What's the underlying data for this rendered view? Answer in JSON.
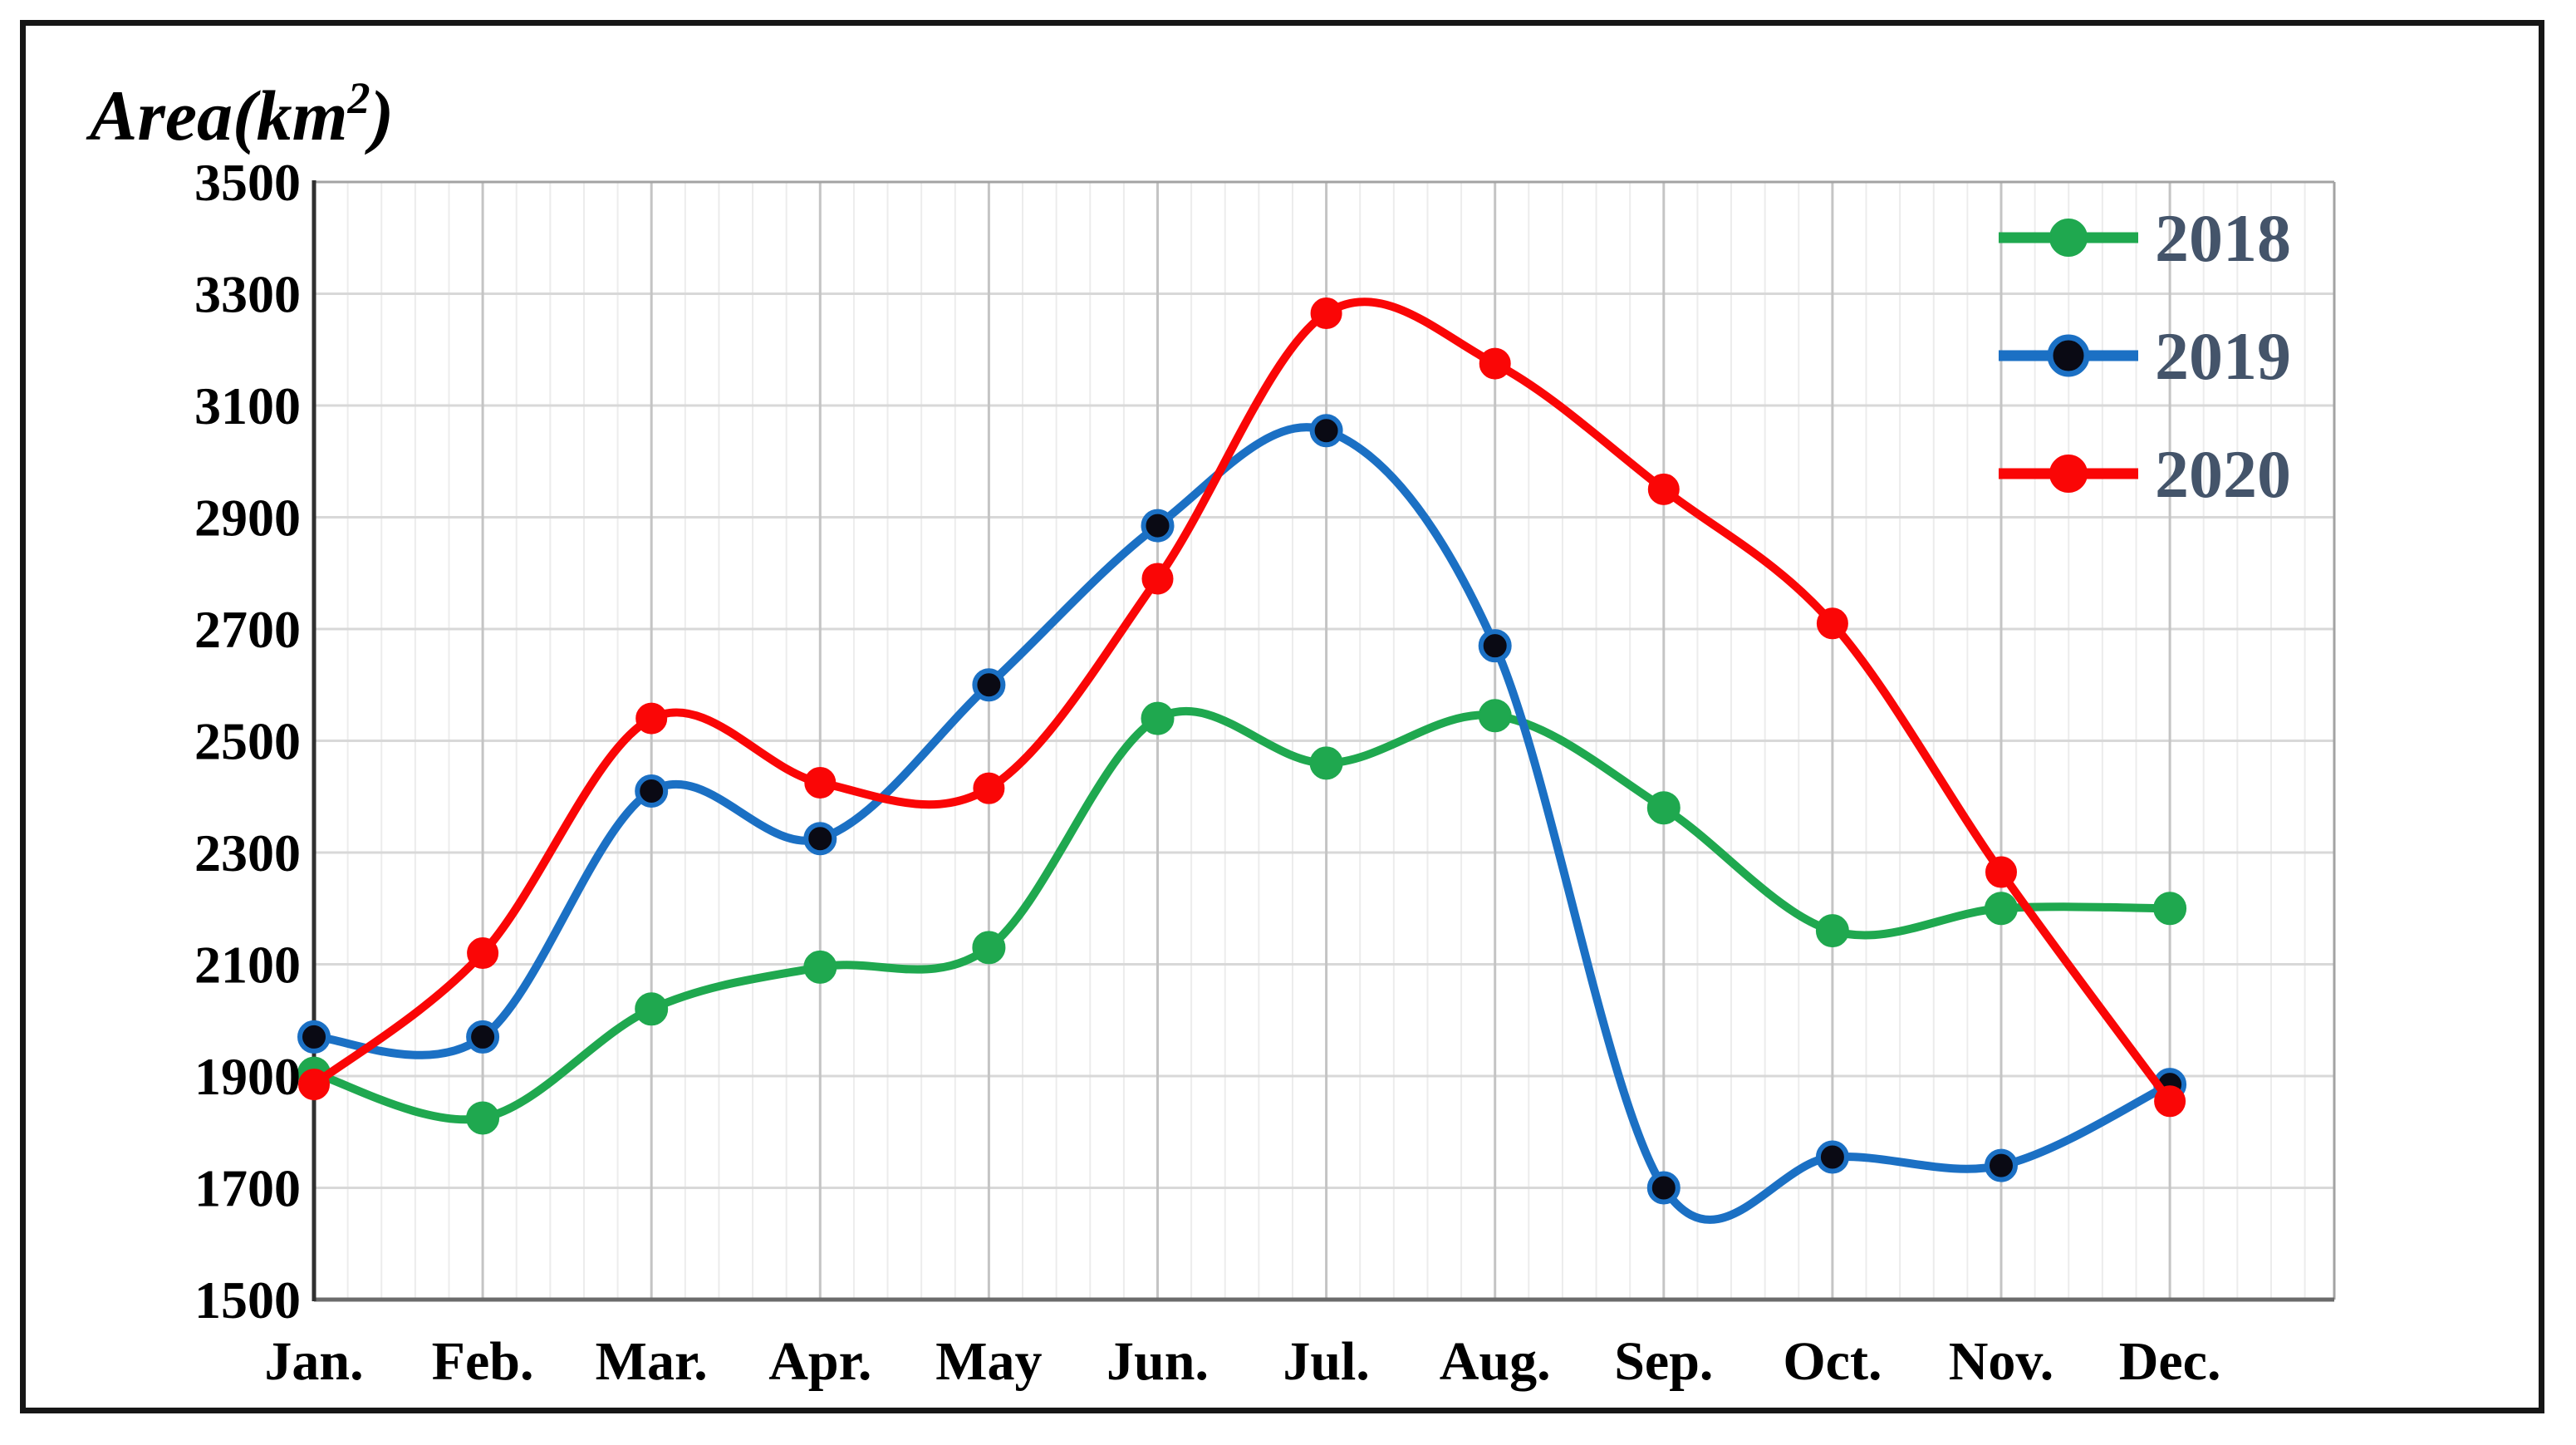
{
  "figure": {
    "background": "#FFFFFF",
    "border_color": "#161616"
  },
  "chart_data": {
    "type": "line",
    "smooth": true,
    "title": "",
    "y_axis_title": "Area(km²)",
    "y_axis_title_parts": {
      "pre": "Area(km",
      "sup": "2",
      "post": ")"
    },
    "categories": [
      "Jan.",
      "Feb.",
      "Mar.",
      "Apr.",
      "May",
      "Jun.",
      "Jul.",
      "Aug.",
      "Sep.",
      "Oct.",
      "Nov.",
      "Dec."
    ],
    "y_ticks": [
      3500,
      3300,
      3100,
      2900,
      2700,
      2500,
      2300,
      2100,
      1900,
      1700,
      1500
    ],
    "ylim": [
      1500,
      3500
    ],
    "y_tick_step": 200,
    "grid": true,
    "legend_position": "top-right-inside",
    "series": [
      {
        "name": "2018",
        "color": "#1FA84F",
        "marker_color": "#1FA84F",
        "values": [
          1905,
          1825,
          2020,
          2095,
          2130,
          2540,
          2460,
          2545,
          2380,
          2160,
          2200,
          2200
        ]
      },
      {
        "name": "2019",
        "color": "#1B70C4",
        "marker_color": "#0A0A14",
        "values": [
          1970,
          1970,
          2410,
          2325,
          2600,
          2885,
          3055,
          2670,
          1700,
          1755,
          1740,
          1885
        ]
      },
      {
        "name": "2020",
        "color": "#FA0606",
        "marker_color": "#FA0606",
        "values": [
          1885,
          2120,
          2540,
          2425,
          2415,
          2790,
          3265,
          3175,
          2950,
          2710,
          2265,
          1855
        ]
      }
    ]
  },
  "theme": {
    "legend_text_color": "#44546A",
    "tick_text_color": "#000000",
    "axis_title_color": "#000000",
    "grid_minor_color": "#ECECEC",
    "grid_major_color": "#C4C4C4",
    "grid_horizontal_color": "#D8D8D8",
    "plot_border_color": "#A3A3A3",
    "axis_left_color": "#303030",
    "axis_bottom_color": "#6B6B6B"
  }
}
